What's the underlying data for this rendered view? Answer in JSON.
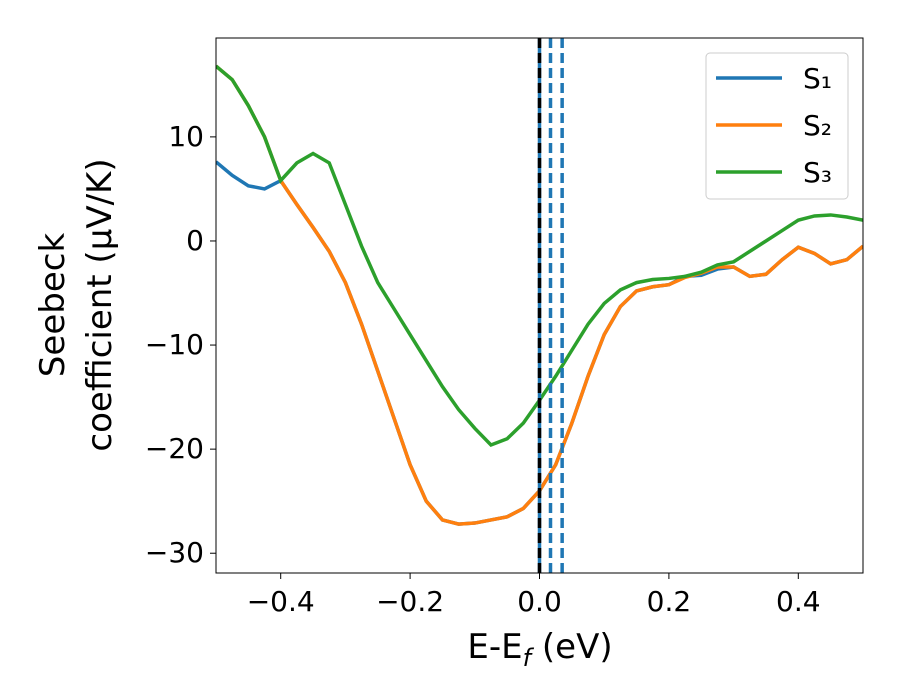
{
  "chart_data": {
    "type": "line",
    "xlabel": "E-E",
    "xlabel_sub": "f",
    "xlabel_unit": " (eV)",
    "ylabel": [
      "Seebeck",
      "coefficient  (μV/K)"
    ],
    "x": [
      -0.5,
      -0.475,
      -0.45,
      -0.425,
      -0.4,
      -0.375,
      -0.35,
      -0.325,
      -0.3,
      -0.275,
      -0.25,
      -0.225,
      -0.2,
      -0.175,
      -0.15,
      -0.125,
      -0.1,
      -0.075,
      -0.05,
      -0.025,
      0,
      0.025,
      0.05,
      0.075,
      0.1,
      0.125,
      0.15,
      0.175,
      0.2,
      0.225,
      0.25,
      0.275,
      0.3,
      0.325,
      0.35,
      0.375,
      0.4,
      0.425,
      0.45,
      0.475,
      0.5
    ],
    "series": [
      {
        "name": "S₁",
        "color": "#1f77b4",
        "values": [
          7.6,
          6.3,
          5.3,
          5.0,
          5.8,
          3.5,
          1.3,
          -1,
          -4,
          -8,
          -12.5,
          -17,
          -21.5,
          -25,
          -26.8,
          -27.2,
          -27.1,
          -26.8,
          -26.5,
          -25.7,
          -24,
          -21.5,
          -17.5,
          -13,
          -9,
          -6.3,
          -4.8,
          -4.4,
          -4.2,
          -3.4,
          -3.3,
          -2.7,
          -2.5,
          -3.4,
          -3.2,
          -1.8,
          -0.6,
          -1.2,
          -2.2,
          -1.8,
          -0.5
        ]
      },
      {
        "name": "S₂",
        "color": "#ff7f0e",
        "values": [
          16.8,
          15.5,
          13,
          10,
          5.8,
          3.5,
          1.3,
          -1,
          -4,
          -8,
          -12.5,
          -17,
          -21.5,
          -25,
          -26.8,
          -27.2,
          -27.1,
          -26.8,
          -26.5,
          -25.7,
          -24,
          -21.5,
          -17.5,
          -13,
          -9,
          -6.3,
          -4.8,
          -4.4,
          -4.2,
          -3.5,
          -3.1,
          -2.5,
          -2.5,
          -3.4,
          -3.2,
          -1.8,
          -0.6,
          -1.2,
          -2.2,
          -1.8,
          -0.5
        ]
      },
      {
        "name": "S₃",
        "color": "#2ca02c",
        "values": [
          16.8,
          15.5,
          13,
          10,
          5.8,
          7.5,
          8.4,
          7.5,
          3.5,
          -0.5,
          -4,
          -6.5,
          -9,
          -11.5,
          -14,
          -16.2,
          -18,
          -19.6,
          -19,
          -17.5,
          -15.3,
          -13,
          -10.5,
          -8,
          -6,
          -4.7,
          -4,
          -3.7,
          -3.6,
          -3.4,
          -3,
          -2.3,
          -2,
          -1,
          0,
          1,
          2,
          2.4,
          2.5,
          2.3,
          2
        ]
      }
    ],
    "vlines": [
      {
        "x": 0,
        "color": "#1f77b4",
        "dashed": false
      },
      {
        "x": 0,
        "color": "#000000",
        "dashed": true
      },
      {
        "x": 0.017,
        "color": "#1f77b4",
        "dashed": true
      },
      {
        "x": 0.035,
        "color": "#1f77b4",
        "dashed": true
      }
    ],
    "xlim": [
      -0.5,
      0.5
    ],
    "xticks": [
      {
        "value": -0.4,
        "label": "−0.4"
      },
      {
        "value": -0.2,
        "label": "−0.2"
      },
      {
        "value": 0,
        "label": "0.0"
      },
      0.2,
      0.4
    ],
    "ylim": [
      -31.9,
      19.5
    ],
    "yticks": [
      {
        "value": -30,
        "label": "−30"
      },
      {
        "value": -20,
        "label": "−20"
      },
      {
        "value": -10,
        "label": "−10"
      },
      0,
      10
    ],
    "grid": false,
    "legend": "upper right"
  }
}
